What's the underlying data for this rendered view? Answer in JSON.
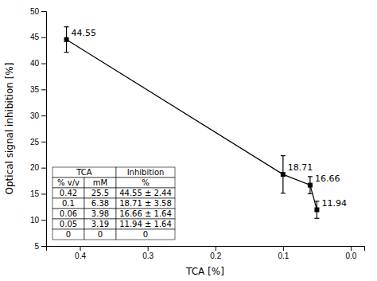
{
  "chart_data": {
    "type": "line",
    "x": [
      0.42,
      0.1,
      0.06,
      0.05
    ],
    "values": [
      44.55,
      18.71,
      16.66,
      11.94
    ],
    "errors": [
      2.44,
      3.58,
      1.64,
      1.64
    ],
    "data_labels": true,
    "xlabel": "TCA  [%]",
    "ylabel": "Optical signal inhibition  [%]",
    "xlim": [
      0.45,
      -0.02
    ],
    "ylim": [
      5,
      50
    ],
    "xticks": [
      0.4,
      0.3,
      0.2,
      0.1,
      {
        "value": 0,
        "label": "0.0"
      }
    ],
    "yticks": [
      5,
      10,
      15,
      20,
      25,
      30,
      35,
      40,
      45,
      50
    ],
    "grid": false,
    "color": "#000000",
    "marker": "square",
    "line_style": "solid",
    "table_header": [
      [
        "TCA",
        "Inhibition"
      ],
      [
        "% v/v",
        "mM",
        "%"
      ]
    ],
    "table_rows": [
      [
        "0.42",
        "25.5",
        "44.55 ± 2.44"
      ],
      [
        "0.1",
        "6.38",
        "18.71 ± 3.58"
      ],
      [
        "0.06",
        "3.98",
        "16.66 ± 1.64"
      ],
      [
        "0.05",
        "3.19",
        "11.94 ± 1.64"
      ],
      [
        "0",
        "0",
        "0"
      ]
    ]
  }
}
